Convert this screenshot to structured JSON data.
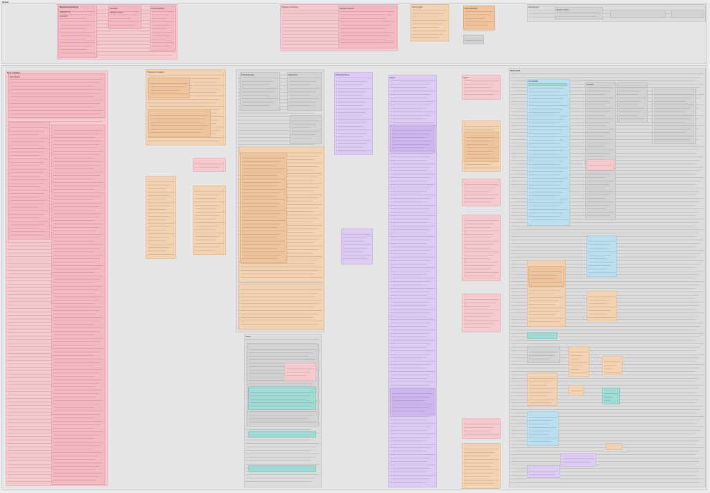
{
  "title": "Global",
  "groups": [
    {
      "id": "top-pink-left",
      "label": "Benutzerverwaltung",
      "color": "pink"
    },
    {
      "id": "top-pink-mid",
      "label": "Kategorienverwaltung",
      "color": "pink"
    },
    {
      "id": "top-pink-right",
      "label": "Suche",
      "color": "pink"
    },
    {
      "id": "top-orange",
      "label": "Benutzeroberfläche",
      "color": "orange"
    },
    {
      "id": "main-left",
      "label": "Benutzerkonten",
      "color": "pink"
    },
    {
      "id": "main-orange-a",
      "label": "Lernmodulverwaltung",
      "color": "orange"
    },
    {
      "id": "main-orange-b",
      "label": "Kursverwaltung",
      "color": "orange"
    },
    {
      "id": "main-purple",
      "label": "Lehrveranstaltungen",
      "color": "purple"
    },
    {
      "id": "main-grey-center",
      "label": "Prüfungen",
      "color": "grey"
    },
    {
      "id": "right-blue",
      "label": "Integration",
      "color": "blue"
    },
    {
      "id": "right-grey",
      "label": "Logistik",
      "color": "grey"
    }
  ],
  "labels": [
    "Benutzerverwaltung",
    "Registrierung",
    "Anmelden",
    "Abmelden",
    "Passwort ändern",
    "Profil bearbeiten",
    "Kategorie hinzufügen",
    "Kategorie löschen",
    "Suche starten",
    "Filter anwenden",
    "Einstellungen",
    "Sprache wählen",
    "Kurs erstellen",
    "Kurs löschen",
    "Teilnehmer verwalten",
    "Prüfung anlegen",
    "Ergebnisse",
    "Benachrichtigung",
    "Export",
    "Import",
    "Datenbank",
    "Schnittstelle",
    "Protokoll",
    "Status"
  ]
}
